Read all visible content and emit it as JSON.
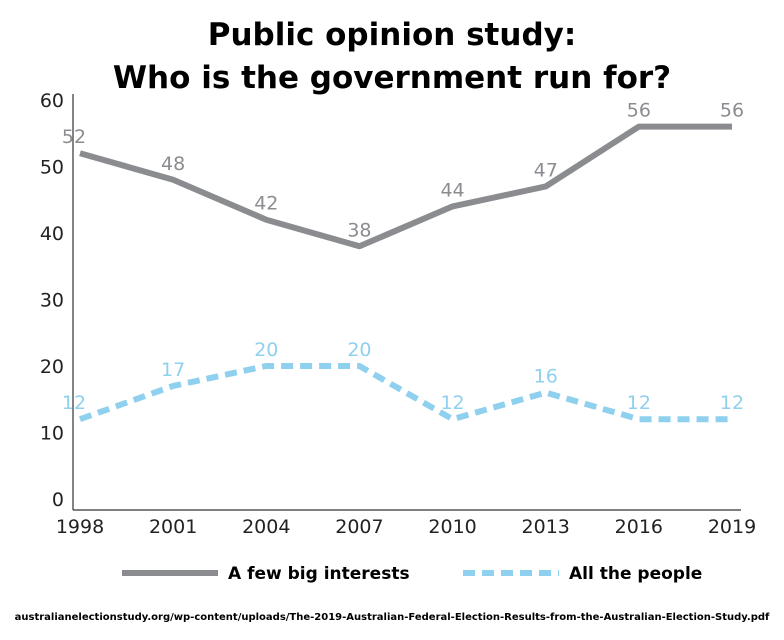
{
  "chart_data": {
    "type": "line",
    "title_lines": [
      "Public opinion study:",
      "Who is the government run for?"
    ],
    "x": [
      1998,
      2001,
      2004,
      2007,
      2010,
      2013,
      2016,
      2019
    ],
    "ylim": [
      0,
      60
    ],
    "yticks": [
      0,
      10,
      20,
      30,
      40,
      50,
      60
    ],
    "grid": false,
    "legend_position": "bottom",
    "series": [
      {
        "name": "A few big interests",
        "values": [
          52,
          48,
          42,
          38,
          44,
          47,
          56,
          56
        ],
        "labels": [
          "52",
          "48",
          "42",
          "38",
          "44",
          "47",
          "56",
          "56"
        ],
        "color": "#8a8c90",
        "style": "solid"
      },
      {
        "name": "All the people",
        "values": [
          12,
          17,
          20,
          20,
          12,
          16,
          12,
          12
        ],
        "labels": [
          "12",
          "17",
          "20",
          "20",
          "12",
          "16",
          "12",
          "12"
        ],
        "color": "#8fd0ee",
        "style": "dashed"
      }
    ]
  },
  "source": "australianelectionstudy.org/wp-content/uploads/The-2019-Australian-Federal-Election-Results-from-the-Australian-Election-Study.pdf"
}
